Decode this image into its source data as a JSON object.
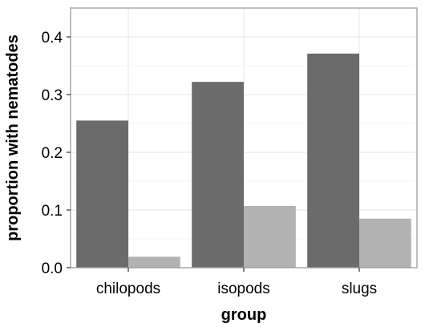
{
  "chart_data": {
    "type": "bar",
    "title": "",
    "xlabel": "group",
    "ylabel": "proportion with nematodes",
    "categories": [
      "chilopods",
      "isopods",
      "slugs"
    ],
    "series": [
      {
        "values": [
          0.255,
          0.322,
          0.371
        ],
        "color": "#6b6b6b"
      },
      {
        "values": [
          0.019,
          0.107,
          0.085
        ],
        "color": "#b3b3b3"
      }
    ],
    "ylim": [
      0,
      0.45
    ],
    "yticks": [
      0.0,
      0.1,
      0.2,
      0.3,
      0.4
    ],
    "ytick_labels": [
      "0.0",
      "0.1",
      "0.2",
      "0.3",
      "0.4"
    ],
    "grid": true,
    "legend": "none"
  }
}
